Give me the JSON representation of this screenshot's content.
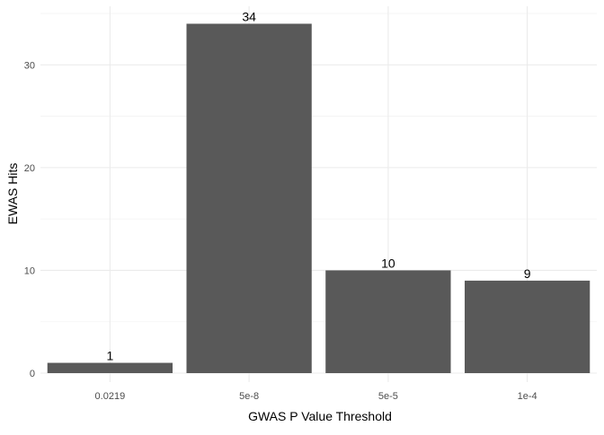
{
  "chart_data": {
    "type": "bar",
    "title": "",
    "xlabel": "GWAS P Value Threshold",
    "ylabel": "EWAS Hits",
    "categories": [
      "0.0219",
      "5e-8",
      "5e-5",
      "1e-4"
    ],
    "values": [
      1,
      34,
      10,
      9
    ],
    "data_labels": [
      "1",
      "34",
      "10",
      "9"
    ],
    "ylim": [
      0,
      35.7
    ],
    "y_ticks": [
      0,
      10,
      20,
      30
    ],
    "y_tick_labels": [
      "0",
      "10",
      "20",
      "30"
    ],
    "grid": true,
    "legend": "none",
    "bar_color": "#595959",
    "background": "#ffffff"
  }
}
